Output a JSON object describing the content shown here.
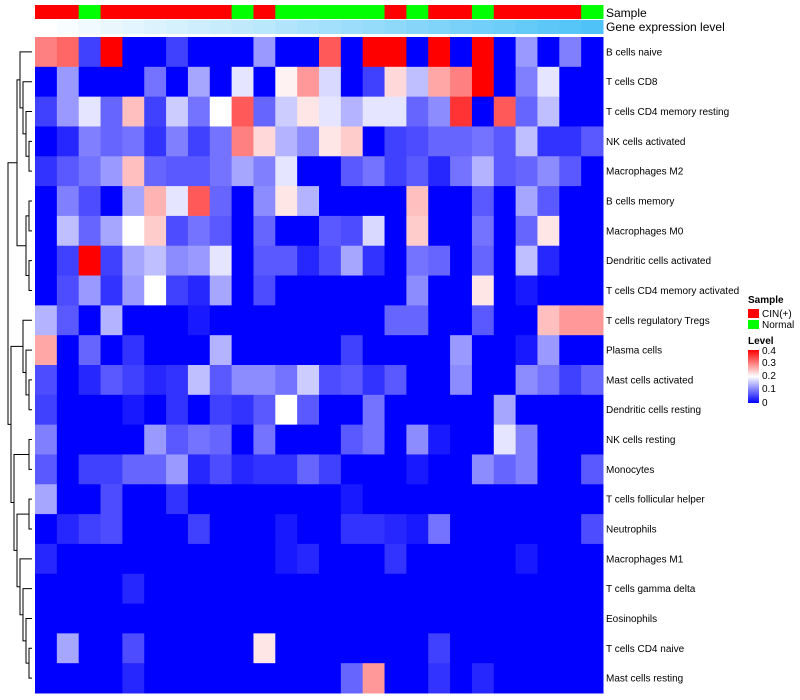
{
  "chart_data": {
    "type": "heatmap",
    "annotation_labels": {
      "sample": "Sample",
      "expression": "Gene expression level"
    },
    "sample_groups": [
      "CIN(+)",
      "CIN(+)",
      "Normal",
      "CIN(+)",
      "CIN(+)",
      "CIN(+)",
      "CIN(+)",
      "CIN(+)",
      "CIN(+)",
      "Normal",
      "CIN(+)",
      "Normal",
      "Normal",
      "Normal",
      "Normal",
      "Normal",
      "CIN(+)",
      "Normal",
      "CIN(+)",
      "CIN(+)",
      "Normal",
      "CIN(+)",
      "CIN(+)",
      "CIN(+)",
      "CIN(+)",
      "Normal"
    ],
    "sample_group_colors": {
      "CIN(+)": "#ff0000",
      "Normal": "#00ff00"
    },
    "expression_gradient": [
      "#ffffff",
      "#4fc3f7"
    ],
    "rows": [
      "B cells naive",
      "T cells CD8",
      "T cells CD4 memory resting",
      "NK cells activated",
      "Macrophages M2",
      "B cells memory",
      "Macrophages M0",
      "Dendritic cells activated",
      "T cells CD4 memory activated",
      "T cells regulatory  Tregs",
      "Plasma cells",
      "Mast cells activated",
      "Dendritic cells resting",
      "NK cells resting",
      "Monocytes",
      "T cells follicular helper",
      "Neutrophils",
      "Macrophages M1",
      "T cells gamma delta",
      "Eosinophils",
      "T cells CD4 naive",
      "Mast cells resting"
    ],
    "values": [
      [
        0.3,
        0.32,
        0.05,
        0.4,
        0.0,
        0.0,
        0.05,
        0.0,
        0.0,
        0.0,
        0.12,
        0.0,
        0.0,
        0.33,
        0.0,
        0.4,
        0.4,
        0.0,
        0.4,
        0.0,
        0.4,
        0.0,
        0.12,
        0.0,
        0.1,
        0.0
      ],
      [
        0.0,
        0.12,
        0.0,
        0.0,
        0.0,
        0.09,
        0.0,
        0.13,
        0.0,
        0.18,
        0.0,
        0.21,
        0.28,
        0.17,
        0.0,
        0.05,
        0.23,
        0.15,
        0.27,
        0.3,
        0.4,
        0.0,
        0.1,
        0.18,
        0.0,
        0.0
      ],
      [
        0.05,
        0.12,
        0.18,
        0.08,
        0.25,
        0.05,
        0.16,
        0.09,
        0.2,
        0.33,
        0.08,
        0.16,
        0.22,
        0.18,
        0.14,
        0.18,
        0.18,
        0.08,
        0.11,
        0.36,
        0.0,
        0.33,
        0.08,
        0.15,
        0.0,
        0.0
      ],
      [
        0.0,
        0.03,
        0.1,
        0.08,
        0.09,
        0.04,
        0.1,
        0.05,
        0.09,
        0.3,
        0.23,
        0.14,
        0.11,
        0.22,
        0.24,
        0.0,
        0.05,
        0.06,
        0.08,
        0.08,
        0.09,
        0.07,
        0.15,
        0.04,
        0.04,
        0.07
      ],
      [
        0.04,
        0.07,
        0.09,
        0.12,
        0.25,
        0.08,
        0.07,
        0.07,
        0.09,
        0.13,
        0.1,
        0.18,
        0.0,
        0.0,
        0.07,
        0.09,
        0.05,
        0.07,
        0.03,
        0.09,
        0.14,
        0.07,
        0.08,
        0.11,
        0.07,
        0.0
      ],
      [
        0.0,
        0.1,
        0.06,
        0.0,
        0.13,
        0.26,
        0.18,
        0.33,
        0.08,
        0.0,
        0.11,
        0.22,
        0.14,
        0.0,
        0.0,
        0.0,
        0.0,
        0.25,
        0.0,
        0.0,
        0.07,
        0.0,
        0.13,
        0.07,
        0.0,
        0.0
      ],
      [
        0.0,
        0.15,
        0.08,
        0.13,
        0.2,
        0.24,
        0.06,
        0.09,
        0.07,
        0.0,
        0.08,
        0.0,
        0.0,
        0.07,
        0.06,
        0.17,
        0.0,
        0.24,
        0.0,
        0.0,
        0.09,
        0.0,
        0.08,
        0.22,
        0.0,
        0.0
      ],
      [
        0.0,
        0.05,
        0.4,
        0.05,
        0.13,
        0.15,
        0.11,
        0.12,
        0.18,
        0.0,
        0.07,
        0.07,
        0.03,
        0.06,
        0.13,
        0.04,
        0.0,
        0.09,
        0.08,
        0.0,
        0.08,
        0.0,
        0.15,
        0.03,
        0.0,
        0.0
      ],
      [
        0.0,
        0.06,
        0.12,
        0.04,
        0.12,
        0.2,
        0.05,
        0.03,
        0.13,
        0.0,
        0.06,
        0.0,
        0.0,
        0.0,
        0.0,
        0.0,
        0.0,
        0.11,
        0.0,
        0.0,
        0.22,
        0.0,
        0.02,
        0.0,
        0.0,
        0.0
      ],
      [
        0.14,
        0.07,
        0.0,
        0.14,
        0.0,
        0.0,
        0.0,
        0.02,
        0.0,
        0.0,
        0.0,
        0.0,
        0.0,
        0.0,
        0.0,
        0.0,
        0.08,
        0.08,
        0.0,
        0.0,
        0.07,
        0.0,
        0.0,
        0.25,
        0.28,
        0.28
      ],
      [
        0.27,
        0.0,
        0.08,
        0.0,
        0.04,
        0.0,
        0.0,
        0.0,
        0.14,
        0.0,
        0.0,
        0.0,
        0.0,
        0.0,
        0.05,
        0.0,
        0.0,
        0.0,
        0.0,
        0.12,
        0.0,
        0.0,
        0.02,
        0.12,
        0.0,
        0.0
      ],
      [
        0.06,
        0.0,
        0.03,
        0.07,
        0.05,
        0.03,
        0.04,
        0.15,
        0.07,
        0.11,
        0.11,
        0.09,
        0.16,
        0.06,
        0.07,
        0.04,
        0.07,
        0.0,
        0.0,
        0.11,
        0.0,
        0.0,
        0.11,
        0.09,
        0.05,
        0.08
      ],
      [
        0.05,
        0.0,
        0.0,
        0.0,
        0.02,
        0.0,
        0.04,
        0.0,
        0.05,
        0.04,
        0.07,
        0.2,
        0.07,
        0.0,
        0.0,
        0.09,
        0.0,
        0.0,
        0.0,
        0.0,
        0.0,
        0.13,
        0.0,
        0.0,
        0.0,
        0.0
      ],
      [
        0.1,
        0.0,
        0.0,
        0.0,
        0.0,
        0.12,
        0.07,
        0.09,
        0.08,
        0.0,
        0.09,
        0.0,
        0.0,
        0.0,
        0.07,
        0.09,
        0.0,
        0.11,
        0.02,
        0.0,
        0.0,
        0.18,
        0.1,
        0.0,
        0.0,
        0.0
      ],
      [
        0.07,
        0.0,
        0.05,
        0.05,
        0.08,
        0.08,
        0.12,
        0.03,
        0.06,
        0.03,
        0.04,
        0.04,
        0.08,
        0.05,
        0.0,
        0.0,
        0.0,
        0.02,
        0.0,
        0.0,
        0.11,
        0.08,
        0.1,
        0.0,
        0.0,
        0.07
      ],
      [
        0.13,
        0.0,
        0.0,
        0.06,
        0.0,
        0.0,
        0.04,
        0.0,
        0.0,
        0.0,
        0.0,
        0.0,
        0.0,
        0.0,
        0.02,
        0.0,
        0.0,
        0.0,
        0.0,
        0.0,
        0.0,
        0.0,
        0.0,
        0.0,
        0.0,
        0.0
      ],
      [
        0.0,
        0.03,
        0.05,
        0.06,
        0.0,
        0.0,
        0.0,
        0.05,
        0.0,
        0.0,
        0.0,
        0.02,
        0.0,
        0.0,
        0.04,
        0.04,
        0.03,
        0.02,
        0.09,
        0.0,
        0.0,
        0.0,
        0.0,
        0.0,
        0.0,
        0.06
      ],
      [
        0.03,
        0.0,
        0.0,
        0.0,
        0.0,
        0.0,
        0.0,
        0.0,
        0.0,
        0.0,
        0.0,
        0.02,
        0.03,
        0.0,
        0.0,
        0.0,
        0.04,
        0.0,
        0.0,
        0.0,
        0.0,
        0.0,
        0.02,
        0.0,
        0.0,
        0.0
      ],
      [
        0.0,
        0.0,
        0.0,
        0.0,
        0.03,
        0.0,
        0.0,
        0.0,
        0.0,
        0.0,
        0.0,
        0.0,
        0.0,
        0.0,
        0.0,
        0.0,
        0.0,
        0.0,
        0.0,
        0.0,
        0.0,
        0.0,
        0.0,
        0.0,
        0.0,
        0.0
      ],
      [
        0.0,
        0.0,
        0.0,
        0.0,
        0.0,
        0.0,
        0.0,
        0.0,
        0.0,
        0.0,
        0.0,
        0.0,
        0.0,
        0.0,
        0.0,
        0.0,
        0.0,
        0.0,
        0.0,
        0.0,
        0.0,
        0.0,
        0.0,
        0.0,
        0.0,
        0.0
      ],
      [
        0.0,
        0.13,
        0.0,
        0.0,
        0.06,
        0.0,
        0.0,
        0.0,
        0.0,
        0.0,
        0.22,
        0.0,
        0.0,
        0.0,
        0.0,
        0.0,
        0.0,
        0.0,
        0.05,
        0.0,
        0.0,
        0.0,
        0.0,
        0.0,
        0.0,
        0.0
      ],
      [
        0.0,
        0.0,
        0.0,
        0.0,
        0.03,
        0.0,
        0.0,
        0.0,
        0.0,
        0.0,
        0.0,
        0.0,
        0.0,
        0.0,
        0.08,
        0.28,
        0.0,
        0.0,
        0.04,
        0.0,
        0.03,
        0.0,
        0.0,
        0.0,
        0.0,
        0.0
      ]
    ],
    "color_scale": {
      "min": 0,
      "mid": 0.2,
      "max": 0.4,
      "colors": [
        "#0000ff",
        "#ffffff",
        "#ff0000"
      ]
    },
    "legend": {
      "sample_title": "Sample",
      "sample_items": [
        {
          "label": "CIN(+)",
          "color": "#ff0000"
        },
        {
          "label": "Normal",
          "color": "#00ff00"
        }
      ],
      "level_title": "Level",
      "level_ticks": [
        "0.4",
        "0.3",
        "0.2",
        "0.1",
        "0"
      ]
    }
  }
}
